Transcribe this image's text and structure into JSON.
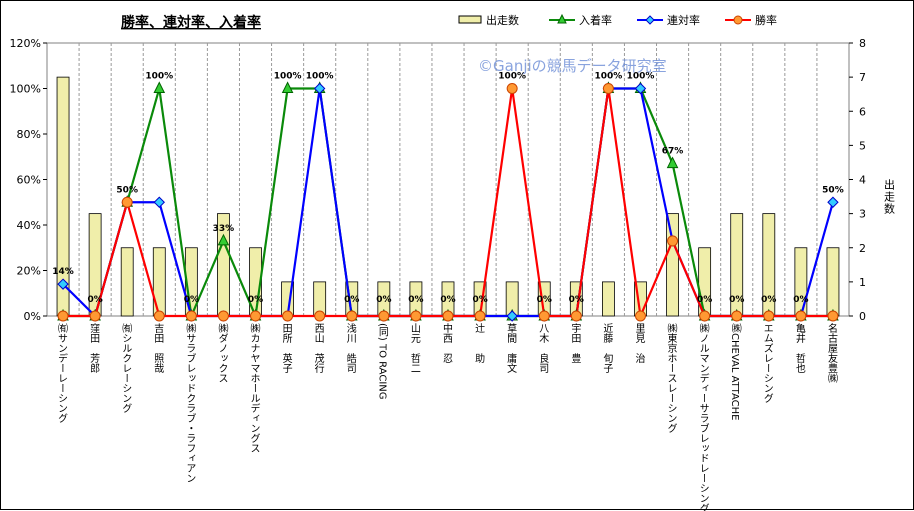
{
  "chart_data": {
    "type": "bar+line",
    "title": "勝率、連対率、入着率",
    "watermark": "©Ganjiの競馬データ研究室",
    "y2label": "出走数",
    "ylim": [
      0,
      120
    ],
    "y2lim": [
      0,
      8
    ],
    "yticks": [
      "0%",
      "20%",
      "40%",
      "60%",
      "80%",
      "100%",
      "120%"
    ],
    "y2ticks": [
      "0",
      "1",
      "2",
      "3",
      "4",
      "5",
      "6",
      "7",
      "8"
    ],
    "legend_position": "top-right",
    "categories": [
      "㈲サンデーレーシング",
      "窪田　芳郎",
      "㈲シルクレーシング",
      "吉田　照哉",
      "㈱サラブレッドクラブ・ラフィアン",
      "㈱ダノックス",
      "㈱カナヤマホールディングス",
      "田所　英子",
      "西山　茂行",
      "浅川　皓司",
      "(同) TO RACING",
      "山元　哲二",
      "中西　忍",
      "辻　　助",
      "草間　庸文",
      "八木　良司",
      "宇田　豊",
      "近藤　旬子",
      "里見　治",
      "㈱東京ホースレーシング",
      "㈱ノルマンディーサラブレッドレーシング",
      "㈱CHEVAL ATTACHE",
      "エムズレーシング",
      "亀井　哲也",
      "名古屋友豊㈱"
    ],
    "series": [
      {
        "name": "出走数",
        "kind": "bar",
        "color": "#f0eeaa",
        "axis": "right",
        "values": [
          7,
          3,
          2,
          2,
          2,
          3,
          2,
          1,
          1,
          1,
          1,
          1,
          1,
          1,
          1,
          1,
          1,
          1,
          1,
          3,
          2,
          3,
          3,
          2,
          2
        ]
      },
      {
        "name": "入着率",
        "kind": "line",
        "color": "#0a8a0a",
        "marker": "triangle",
        "values": [
          0,
          0,
          50,
          100,
          0,
          33,
          0,
          100,
          100,
          0,
          0,
          0,
          0,
          0,
          0,
          0,
          0,
          100,
          100,
          67,
          0,
          0,
          0,
          0,
          0
        ]
      },
      {
        "name": "連対率",
        "kind": "line",
        "color": "#0000ff",
        "marker": "diamond",
        "values": [
          14,
          0,
          50,
          50,
          0,
          0,
          0,
          0,
          100,
          0,
          0,
          0,
          0,
          0,
          0,
          0,
          0,
          100,
          100,
          33,
          0,
          0,
          0,
          0,
          50
        ]
      },
      {
        "name": "勝率",
        "kind": "line",
        "color": "#ff0000",
        "marker": "circle",
        "values": [
          0,
          0,
          50,
          0,
          0,
          0,
          0,
          0,
          0,
          0,
          0,
          0,
          0,
          0,
          100,
          0,
          0,
          100,
          0,
          33,
          0,
          0,
          0,
          0,
          0
        ]
      }
    ],
    "data_labels": [
      "14%",
      "0%",
      "50%",
      "100%",
      "0%",
      "33%",
      "0%",
      "100%",
      "100%",
      "0%",
      "0%",
      "0%",
      "0%",
      "0%",
      "100%",
      "0%",
      "0%",
      "100%",
      "100%",
      "67%",
      "0%",
      "0%",
      "0%",
      "0%",
      "50%"
    ]
  }
}
